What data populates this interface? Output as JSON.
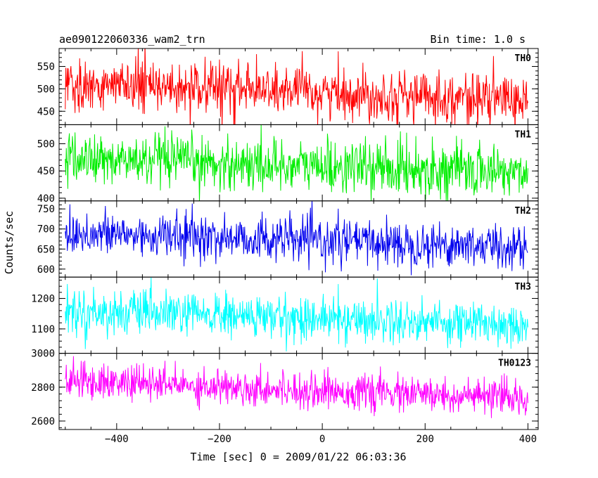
{
  "header": {
    "title": "ae090122060336_wam2_trn",
    "bin_time": "Bin time: 1.0 s"
  },
  "chart_data": {
    "type": "line",
    "xlabel": "Time [sec] 0 = 2009/01/22 06:03:36",
    "ylabel": "Counts/sec",
    "xlim": [
      -512,
      420
    ],
    "x_ticks": [
      -400,
      -200,
      0,
      200,
      400
    ],
    "x_tick_labels": [
      "−400",
      "−200",
      "0",
      "200",
      "400"
    ],
    "x_range": [
      -500,
      400
    ],
    "bin_time_s": 1.0,
    "grid": false,
    "panels": [
      {
        "label": "TH0",
        "color": "#ff0000",
        "ylim": [
          420,
          590
        ],
        "ticks": [
          450,
          500,
          550
        ],
        "tick_labels": [
          "450",
          "500",
          "550"
        ],
        "mean_start": 512,
        "mean_end": 475,
        "noise": 28
      },
      {
        "label": "TH1",
        "color": "#00ee00",
        "ylim": [
          395,
          535
        ],
        "ticks": [
          400,
          450,
          500
        ],
        "tick_labels": [
          "400",
          "450",
          "500"
        ],
        "mean_start": 472,
        "mean_end": 448,
        "noise": 24
      },
      {
        "label": "TH2",
        "color": "#0000ee",
        "ylim": [
          580,
          770
        ],
        "ticks": [
          600,
          650,
          700,
          750
        ],
        "tick_labels": [
          "600",
          "650",
          "700",
          "750"
        ],
        "mean_start": 690,
        "mean_end": 655,
        "noise": 28
      },
      {
        "label": "TH3",
        "color": "#00ffff",
        "ylim": [
          1020,
          1270
        ],
        "ticks": [
          1100,
          1200
        ],
        "tick_labels": [
          "1100",
          "1200"
        ],
        "mean_start": 1158,
        "mean_end": 1115,
        "noise": 36
      },
      {
        "label": "TH0123",
        "color": "#ff00ff",
        "ylim": [
          2550,
          3000
        ],
        "ticks": [
          2600,
          2800,
          3000
        ],
        "tick_labels": [
          "2600",
          "2800",
          "3000"
        ],
        "mean_start": 2840,
        "mean_end": 2730,
        "noise": 52
      }
    ]
  }
}
